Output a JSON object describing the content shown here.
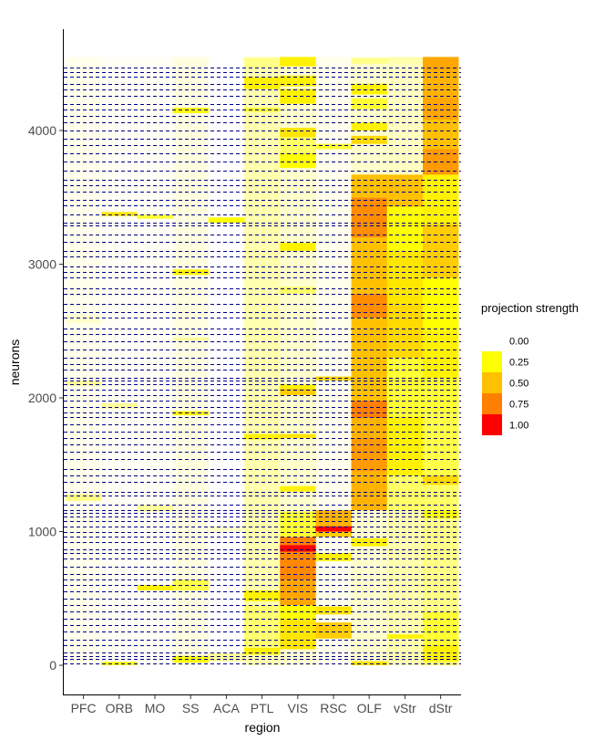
{
  "chart_data": {
    "type": "heatmap",
    "xlabel": "region",
    "ylabel": "neurons",
    "categories": [
      "PFC",
      "ORB",
      "MO",
      "SS",
      "ACA",
      "PTL",
      "VIS",
      "RSC",
      "OLF",
      "vStr",
      "dStr"
    ],
    "y_ticks": [
      0,
      1000,
      2000,
      3000,
      4000
    ],
    "ylim": [
      -220,
      4880
    ],
    "n_neurons": 4550,
    "grid": false,
    "divider_color": "#00008B",
    "dividers": [
      15,
      45,
      70,
      95,
      150,
      190,
      250,
      300,
      350,
      400,
      450,
      500,
      550,
      600,
      640,
      680,
      740,
      800,
      840,
      870,
      920,
      960,
      1000,
      1040,
      1080,
      1110,
      1140,
      1160,
      1200,
      1270,
      1300,
      1370,
      1420,
      1470,
      1540,
      1600,
      1650,
      1700,
      1750,
      1800,
      1860,
      1890,
      1930,
      1980,
      2020,
      2060,
      2100,
      2130,
      2150,
      2210,
      2250,
      2300,
      2360,
      2420,
      2480,
      2520,
      2600,
      2640,
      2700,
      2780,
      2820,
      2900,
      2940,
      2980,
      3060,
      3100,
      3170,
      3220,
      3290,
      3310,
      3370,
      3440,
      3480,
      3540,
      3590,
      3630,
      3700,
      3770,
      3830,
      3890,
      3940,
      4000,
      4060,
      4110,
      4160,
      4200,
      4260,
      4310,
      4350,
      4400,
      4440,
      4470
    ],
    "legend": {
      "title": "projection strength",
      "position": "right",
      "labels": [
        "0.00",
        "0.25",
        "0.50",
        "0.75",
        "1.00"
      ],
      "colors": [
        "#FFFFFF",
        "#FFFF00",
        "#FFC000",
        "#FF8000",
        "#FF0000"
      ]
    },
    "default_values": [
      0.02,
      0.01,
      0.01,
      0.03,
      0.0,
      0.08,
      0.05,
      0.02,
      0.05,
      0.08,
      0.15
    ],
    "blocks": [
      {
        "region": "PFC",
        "start": 1230,
        "end": 1280,
        "value": 0.12
      },
      {
        "region": "PFC",
        "start": 2090,
        "end": 2130,
        "value": 0.1
      },
      {
        "region": "PFC",
        "start": 2560,
        "end": 2620,
        "value": 0.05
      },
      {
        "region": "ORB",
        "start": 1,
        "end": 25,
        "value": 0.25
      },
      {
        "region": "ORB",
        "start": 3360,
        "end": 3390,
        "value": 0.35
      },
      {
        "region": "ORB",
        "start": 1920,
        "end": 1960,
        "value": 0.1
      },
      {
        "region": "MO",
        "start": 560,
        "end": 600,
        "value": 0.3
      },
      {
        "region": "MO",
        "start": 3340,
        "end": 3370,
        "value": 0.2
      },
      {
        "region": "MO",
        "start": 1150,
        "end": 1200,
        "value": 0.1
      },
      {
        "region": "SS",
        "start": 20,
        "end": 70,
        "value": 0.25
      },
      {
        "region": "SS",
        "start": 560,
        "end": 640,
        "value": 0.18
      },
      {
        "region": "SS",
        "start": 1870,
        "end": 1900,
        "value": 0.3
      },
      {
        "region": "SS",
        "start": 2920,
        "end": 2960,
        "value": 0.3
      },
      {
        "region": "SS",
        "start": 4130,
        "end": 4170,
        "value": 0.25
      },
      {
        "region": "SS",
        "start": 2430,
        "end": 2450,
        "value": 0.1
      },
      {
        "region": "ACA",
        "start": 30,
        "end": 90,
        "value": 0.1
      },
      {
        "region": "ACA",
        "start": 3310,
        "end": 3350,
        "value": 0.25
      },
      {
        "region": "ACA",
        "start": 1000,
        "end": 1040,
        "value": 0.05
      },
      {
        "region": "PTL",
        "start": 80,
        "end": 130,
        "value": 0.3
      },
      {
        "region": "PTL",
        "start": 130,
        "end": 450,
        "value": 0.14
      },
      {
        "region": "PTL",
        "start": 480,
        "end": 560,
        "value": 0.3
      },
      {
        "region": "PTL",
        "start": 1690,
        "end": 1730,
        "value": 0.3
      },
      {
        "region": "PTL",
        "start": 4310,
        "end": 4400,
        "value": 0.3
      },
      {
        "region": "PTL",
        "start": 4140,
        "end": 4170,
        "value": 0.2
      },
      {
        "region": "PTL",
        "start": 4470,
        "end": 4540,
        "value": 0.12
      },
      {
        "region": "VIS",
        "start": 120,
        "end": 350,
        "value": 0.35
      },
      {
        "region": "VIS",
        "start": 350,
        "end": 450,
        "value": 0.25
      },
      {
        "region": "VIS",
        "start": 450,
        "end": 640,
        "value": 0.6
      },
      {
        "region": "VIS",
        "start": 640,
        "end": 850,
        "value": 0.72
      },
      {
        "region": "VIS",
        "start": 850,
        "end": 900,
        "value": 1.0
      },
      {
        "region": "VIS",
        "start": 900,
        "end": 960,
        "value": 0.75
      },
      {
        "region": "VIS",
        "start": 960,
        "end": 1150,
        "value": 0.2
      },
      {
        "region": "VIS",
        "start": 1300,
        "end": 1340,
        "value": 0.3
      },
      {
        "region": "VIS",
        "start": 1700,
        "end": 1730,
        "value": 0.35
      },
      {
        "region": "VIS",
        "start": 2020,
        "end": 2070,
        "value": 0.45
      },
      {
        "region": "VIS",
        "start": 2070,
        "end": 2100,
        "value": 0.3
      },
      {
        "region": "VIS",
        "start": 3100,
        "end": 3160,
        "value": 0.3
      },
      {
        "region": "VIS",
        "start": 2780,
        "end": 2830,
        "value": 0.15
      },
      {
        "region": "VIS",
        "start": 3720,
        "end": 3830,
        "value": 0.25
      },
      {
        "region": "VIS",
        "start": 3830,
        "end": 3950,
        "value": 0.15
      },
      {
        "region": "VIS",
        "start": 3950,
        "end": 4020,
        "value": 0.35
      },
      {
        "region": "VIS",
        "start": 4200,
        "end": 4310,
        "value": 0.3
      },
      {
        "region": "VIS",
        "start": 4330,
        "end": 4410,
        "value": 0.3
      },
      {
        "region": "VIS",
        "start": 4480,
        "end": 4550,
        "value": 0.3
      },
      {
        "region": "RSC",
        "start": 200,
        "end": 320,
        "value": 0.45
      },
      {
        "region": "RSC",
        "start": 380,
        "end": 440,
        "value": 0.35
      },
      {
        "region": "RSC",
        "start": 780,
        "end": 840,
        "value": 0.3
      },
      {
        "region": "RSC",
        "start": 960,
        "end": 1000,
        "value": 0.45
      },
      {
        "region": "RSC",
        "start": 1000,
        "end": 1040,
        "value": 1.0
      },
      {
        "region": "RSC",
        "start": 1040,
        "end": 1160,
        "value": 0.55
      },
      {
        "region": "RSC",
        "start": 2130,
        "end": 2160,
        "value": 0.4
      },
      {
        "region": "RSC",
        "start": 3860,
        "end": 3900,
        "value": 0.2
      },
      {
        "region": "OLF",
        "start": 0,
        "end": 30,
        "value": 0.35
      },
      {
        "region": "OLF",
        "start": 890,
        "end": 950,
        "value": 0.3
      },
      {
        "region": "OLF",
        "start": 1160,
        "end": 1450,
        "value": 0.55
      },
      {
        "region": "OLF",
        "start": 1450,
        "end": 1700,
        "value": 0.65
      },
      {
        "region": "OLF",
        "start": 1700,
        "end": 1850,
        "value": 0.55
      },
      {
        "region": "OLF",
        "start": 1850,
        "end": 1980,
        "value": 0.75
      },
      {
        "region": "OLF",
        "start": 1980,
        "end": 2600,
        "value": 0.5
      },
      {
        "region": "OLF",
        "start": 2600,
        "end": 2780,
        "value": 0.7
      },
      {
        "region": "OLF",
        "start": 2780,
        "end": 3200,
        "value": 0.5
      },
      {
        "region": "OLF",
        "start": 3200,
        "end": 3500,
        "value": 0.7
      },
      {
        "region": "OLF",
        "start": 3500,
        "end": 3670,
        "value": 0.5
      },
      {
        "region": "OLF",
        "start": 3900,
        "end": 3960,
        "value": 0.4
      },
      {
        "region": "OLF",
        "start": 4000,
        "end": 4060,
        "value": 0.3
      },
      {
        "region": "OLF",
        "start": 4160,
        "end": 4240,
        "value": 0.2
      },
      {
        "region": "OLF",
        "start": 4270,
        "end": 4350,
        "value": 0.3
      },
      {
        "region": "OLF",
        "start": 4500,
        "end": 4540,
        "value": 0.12
      },
      {
        "region": "vStr",
        "start": 200,
        "end": 230,
        "value": 0.3
      },
      {
        "region": "vStr",
        "start": 1160,
        "end": 1420,
        "value": 0.15
      },
      {
        "region": "vStr",
        "start": 1420,
        "end": 1860,
        "value": 0.3
      },
      {
        "region": "vStr",
        "start": 1860,
        "end": 2300,
        "value": 0.2
      },
      {
        "region": "vStr",
        "start": 2300,
        "end": 2700,
        "value": 0.4
      },
      {
        "region": "vStr",
        "start": 2700,
        "end": 3100,
        "value": 0.35
      },
      {
        "region": "vStr",
        "start": 3100,
        "end": 3430,
        "value": 0.25
      },
      {
        "region": "vStr",
        "start": 3430,
        "end": 3670,
        "value": 0.5
      },
      {
        "region": "vStr",
        "start": 3670,
        "end": 4500,
        "value": 0.06
      },
      {
        "region": "dStr",
        "start": 30,
        "end": 150,
        "value": 0.3
      },
      {
        "region": "dStr",
        "start": 150,
        "end": 400,
        "value": 0.2
      },
      {
        "region": "dStr",
        "start": 400,
        "end": 1100,
        "value": 0.12
      },
      {
        "region": "dStr",
        "start": 1100,
        "end": 1160,
        "value": 0.25
      },
      {
        "region": "dStr",
        "start": 1350,
        "end": 1420,
        "value": 0.4
      },
      {
        "region": "dStr",
        "start": 1420,
        "end": 1900,
        "value": 0.18
      },
      {
        "region": "dStr",
        "start": 1900,
        "end": 2150,
        "value": 0.2
      },
      {
        "region": "dStr",
        "start": 2150,
        "end": 2500,
        "value": 0.3
      },
      {
        "region": "dStr",
        "start": 2500,
        "end": 2900,
        "value": 0.25
      },
      {
        "region": "dStr",
        "start": 2900,
        "end": 3300,
        "value": 0.45
      },
      {
        "region": "dStr",
        "start": 3300,
        "end": 3670,
        "value": 0.3
      },
      {
        "region": "dStr",
        "start": 3670,
        "end": 3860,
        "value": 0.65
      },
      {
        "region": "dStr",
        "start": 3860,
        "end": 4080,
        "value": 0.5
      },
      {
        "region": "dStr",
        "start": 4080,
        "end": 4250,
        "value": 0.6
      },
      {
        "region": "dStr",
        "start": 4250,
        "end": 4450,
        "value": 0.55
      },
      {
        "region": "dStr",
        "start": 4450,
        "end": 4550,
        "value": 0.6
      }
    ]
  }
}
